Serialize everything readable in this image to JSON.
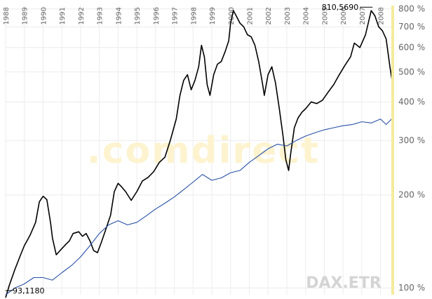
{
  "chart_data": {
    "type": "line",
    "watermark": ".comdirect",
    "instrument_label": "DAX.ETR",
    "y_scale": "log",
    "ylim": [
      95,
      820
    ],
    "y_ticks": [
      {
        "value": 100,
        "label": "100 %"
      },
      {
        "value": 200,
        "label": "200 %"
      },
      {
        "value": 300,
        "label": "300 %"
      },
      {
        "value": 400,
        "label": "400 %"
      },
      {
        "value": 500,
        "label": "500 %"
      },
      {
        "value": 600,
        "label": "600 %"
      },
      {
        "value": 700,
        "label": "700 %"
      },
      {
        "value": 800,
        "label": "800 %"
      }
    ],
    "xlim": [
      1988.0,
      2008.65
    ],
    "x_ticks": [
      "1988",
      "1989",
      "1990",
      "1991",
      "1992",
      "1993",
      "1994",
      "1995",
      "1996",
      "1997",
      "1998",
      "1999",
      "2000",
      "2001",
      "2002",
      "2003",
      "2004",
      "2005",
      "2006",
      "2007",
      "2008"
    ],
    "annotations": {
      "max": {
        "x": 2007.5,
        "value": 810.569,
        "label": "810,5690"
      },
      "min": {
        "x": 1988.0,
        "value": 93.118,
        "label": "93,1180"
      }
    },
    "series": [
      {
        "color": "#000000",
        "x": [
          1988.0,
          1988.2,
          1988.5,
          1988.8,
          1989.0,
          1989.3,
          1989.6,
          1989.8,
          1990.0,
          1990.2,
          1990.4,
          1990.5,
          1990.7,
          1990.9,
          1991.2,
          1991.4,
          1991.6,
          1991.9,
          1992.1,
          1992.3,
          1992.5,
          1992.7,
          1992.9,
          1993.1,
          1993.3,
          1993.6,
          1993.8,
          1994.0,
          1994.2,
          1994.4,
          1994.7,
          1995.0,
          1995.3,
          1995.6,
          1995.9,
          1996.2,
          1996.5,
          1996.8,
          1997.1,
          1997.3,
          1997.5,
          1997.7,
          1997.9,
          1998.1,
          1998.3,
          1998.45,
          1998.6,
          1998.75,
          1998.9,
          1999.1,
          1999.3,
          1999.5,
          1999.7,
          1999.9,
          2000.0,
          2000.15,
          2000.3,
          2000.5,
          2000.7,
          2000.9,
          2001.1,
          2001.3,
          2001.5,
          2001.7,
          2001.8,
          2002.0,
          2002.2,
          2002.4,
          2002.6,
          2002.8,
          2002.95,
          2003.1,
          2003.2,
          2003.4,
          2003.6,
          2003.8,
          2004.0,
          2004.3,
          2004.6,
          2004.9,
          2005.2,
          2005.5,
          2005.8,
          2006.1,
          2006.4,
          2006.6,
          2006.9,
          2007.2,
          2007.5,
          2007.7,
          2007.9,
          2008.1,
          2008.3,
          2008.5,
          2008.65
        ],
        "values": [
          93,
          102,
          115,
          128,
          137,
          148,
          163,
          190,
          198,
          193,
          162,
          145,
          128,
          132,
          138,
          142,
          150,
          152,
          147,
          150,
          142,
          132,
          130,
          140,
          152,
          172,
          205,
          218,
          212,
          205,
          192,
          205,
          222,
          228,
          238,
          255,
          265,
          302,
          352,
          420,
          470,
          490,
          438,
          470,
          520,
          610,
          560,
          455,
          420,
          490,
          530,
          540,
          580,
          630,
          720,
          790,
          760,
          720,
          700,
          660,
          650,
          610,
          540,
          460,
          420,
          490,
          520,
          460,
          380,
          310,
          260,
          240,
          270,
          330,
          355,
          370,
          380,
          400,
          395,
          405,
          430,
          455,
          490,
          525,
          560,
          620,
          600,
          660,
          790,
          760,
          700,
          680,
          640,
          520,
          455
        ]
      },
      {
        "color": "#2850a8",
        "x": [
          1988.0,
          1988.5,
          1989.0,
          1989.5,
          1990.0,
          1990.5,
          1991.0,
          1991.5,
          1992.0,
          1992.5,
          1993.0,
          1993.5,
          1994.0,
          1994.5,
          1995.0,
          1995.5,
          1996.0,
          1996.5,
          1997.0,
          1997.5,
          1998.0,
          1998.5,
          1999.0,
          1999.5,
          2000.0,
          2000.5,
          2001.0,
          2001.5,
          2002.0,
          2002.5,
          2003.0,
          2003.5,
          2004.0,
          2004.5,
          2005.0,
          2005.5,
          2006.0,
          2006.5,
          2007.0,
          2007.5,
          2008.0,
          2008.3,
          2008.65
        ],
        "values": [
          95,
          100,
          103,
          108,
          108,
          106,
          112,
          118,
          126,
          137,
          150,
          160,
          165,
          160,
          163,
          171,
          180,
          188,
          197,
          208,
          220,
          233,
          223,
          227,
          236,
          240,
          255,
          268,
          282,
          292,
          288,
          300,
          310,
          318,
          325,
          330,
          335,
          338,
          345,
          342,
          352,
          338,
          355
        ]
      }
    ]
  }
}
